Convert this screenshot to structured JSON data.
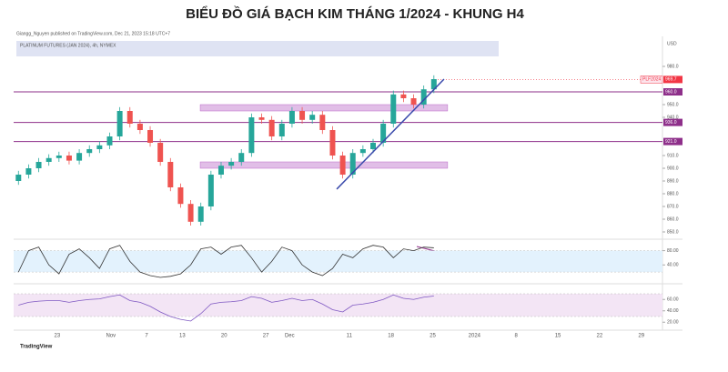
{
  "chart_data": {
    "type": "candlestick",
    "title": "BIỂU ĐỒ GIÁ BẠCH KIM THÁNG 1/2024 - KHUNG H4",
    "subtitle": "Giangg_Nguyen published on TradingView.com, Dec 21, 2023 15:18 UTC+7",
    "legend_text": "PLATINUM FUTURES (JAN 2024), 4h, NYMEX",
    "currency": "USD",
    "footer": "TradingView",
    "x": [
      -6.5,
      -4.8,
      -3.1,
      -1.4,
      0.3,
      2,
      3.7,
      5.4,
      7.1,
      8.8,
      10.5,
      12.2,
      13.9,
      15.6,
      17.3,
      19,
      20.7,
      22.4,
      24.1,
      25.8,
      27.5,
      29.2,
      30.9,
      32.6,
      34.3,
      36,
      37.7,
      39.4,
      41.1,
      42.8,
      44.5,
      46.2,
      47.9,
      49.6,
      51.3,
      53,
      54.7,
      56.4,
      58.1,
      59.8,
      61.5,
      63.2
    ],
    "open": [
      890,
      895,
      900,
      905,
      908,
      910,
      906,
      912,
      915,
      918,
      925,
      945,
      935,
      930,
      920,
      905,
      885,
      872,
      858,
      870,
      895,
      902,
      905,
      912,
      940,
      938,
      925,
      935,
      945,
      938,
      942,
      930,
      910,
      895,
      912,
      915,
      920,
      935,
      958,
      955,
      950,
      962
    ],
    "high": [
      898,
      903,
      908,
      911,
      913,
      913,
      915,
      918,
      921,
      928,
      948,
      948,
      938,
      933,
      923,
      908,
      888,
      875,
      873,
      898,
      905,
      908,
      915,
      943,
      943,
      941,
      938,
      948,
      948,
      945,
      945,
      933,
      913,
      915,
      918,
      923,
      938,
      961,
      961,
      958,
      965,
      973
    ],
    "low": [
      887,
      892,
      897,
      902,
      905,
      903,
      903,
      909,
      912,
      915,
      922,
      932,
      927,
      917,
      902,
      882,
      869,
      855,
      855,
      867,
      892,
      899,
      902,
      909,
      935,
      922,
      922,
      932,
      935,
      935,
      927,
      907,
      892,
      892,
      909,
      912,
      917,
      932,
      952,
      947,
      947,
      959
    ],
    "close": [
      895,
      900,
      905,
      908,
      910,
      906,
      912,
      915,
      918,
      925,
      945,
      935,
      930,
      920,
      905,
      885,
      872,
      858,
      870,
      895,
      902,
      905,
      912,
      940,
      938,
      925,
      935,
      945,
      938,
      942,
      930,
      910,
      895,
      912,
      915,
      920,
      935,
      958,
      955,
      950,
      962,
      970
    ],
    "up_color": "#26a69a",
    "down_color": "#ef5350",
    "xlim": [
      -7,
      101
    ],
    "xticks": [
      {
        "value": 0,
        "label": "23"
      },
      {
        "value": 9,
        "label": "Nov"
      },
      {
        "value": 15,
        "label": "7"
      },
      {
        "value": 21,
        "label": "13"
      },
      {
        "value": 28,
        "label": "20"
      },
      {
        "value": 35,
        "label": "27"
      },
      {
        "value": 39,
        "label": "Dec"
      },
      {
        "value": 49,
        "label": "11"
      },
      {
        "value": 56,
        "label": "18"
      },
      {
        "value": 63,
        "label": "25"
      },
      {
        "value": 70,
        "label": "2024"
      },
      {
        "value": 77,
        "label": "8"
      },
      {
        "value": 84,
        "label": "15"
      },
      {
        "value": 91,
        "label": "22"
      },
      {
        "value": 98,
        "label": "29"
      }
    ],
    "ylim": [
      845,
      1000
    ],
    "yticks": [
      {
        "value": 850,
        "label": "850.0"
      },
      {
        "value": 860,
        "label": "860.0"
      },
      {
        "value": 870,
        "label": "870.0"
      },
      {
        "value": 880,
        "label": "880.0"
      },
      {
        "value": 890,
        "label": "890.0"
      },
      {
        "value": 900,
        "label": "900.0"
      },
      {
        "value": 910,
        "label": "910.0"
      },
      {
        "value": 940,
        "label": "940.0"
      },
      {
        "value": 950,
        "label": "950.0"
      },
      {
        "value": 980,
        "label": "980.0"
      }
    ],
    "hlines": [
      {
        "value": 960,
        "label": "960.0"
      },
      {
        "value": 936,
        "label": "936.0"
      },
      {
        "value": 921,
        "label": "921.0"
      }
    ],
    "hline_color": "#8e2f8a",
    "last_price": {
      "name": "PLF2024",
      "value": 969.7,
      "color": "#f23645"
    },
    "zones": [
      {
        "from": 24,
        "to": 65.5,
        "low": 945,
        "high": 950
      },
      {
        "from": 24,
        "to": 65.5,
        "low": 900,
        "high": 905
      }
    ],
    "zone_color": "#e1bee7",
    "trendline": {
      "x": [
        46.9,
        64.9
      ],
      "y": [
        883.6,
        970
      ],
      "color": "#3949ab"
    },
    "osc1": {
      "color": "#333333",
      "values": [
        20,
        80,
        90,
        40,
        15,
        70,
        85,
        60,
        30,
        85,
        95,
        50,
        20,
        10,
        5,
        8,
        15,
        40,
        85,
        90,
        70,
        90,
        95,
        60,
        20,
        50,
        90,
        80,
        40,
        20,
        10,
        30,
        70,
        60,
        85,
        95,
        90,
        60,
        85,
        80,
        90,
        88
      ],
      "ylim": [
        5,
        107
      ],
      "yticks": [
        {
          "value": 80,
          "label": "80.00"
        },
        {
          "value": 40,
          "label": "40.00"
        }
      ],
      "band": [
        20,
        80
      ],
      "band_color": "#e3f2fd"
    },
    "osc2": {
      "color": "#7e57c2",
      "values": [
        50,
        55,
        57,
        58,
        58,
        55,
        58,
        60,
        61,
        65,
        68,
        58,
        55,
        48,
        38,
        30,
        25,
        22,
        35,
        52,
        55,
        56,
        58,
        65,
        62,
        55,
        58,
        62,
        58,
        60,
        52,
        42,
        38,
        50,
        52,
        55,
        60,
        68,
        62,
        60,
        64,
        66
      ],
      "ylim": [
        14,
        78
      ],
      "yticks": [
        {
          "value": 60,
          "label": "60.00"
        },
        {
          "value": 40,
          "label": "40.00"
        },
        {
          "value": 20,
          "label": "20.00"
        }
      ],
      "band": [
        30,
        70
      ],
      "band_color": "#f3e5f5"
    }
  }
}
